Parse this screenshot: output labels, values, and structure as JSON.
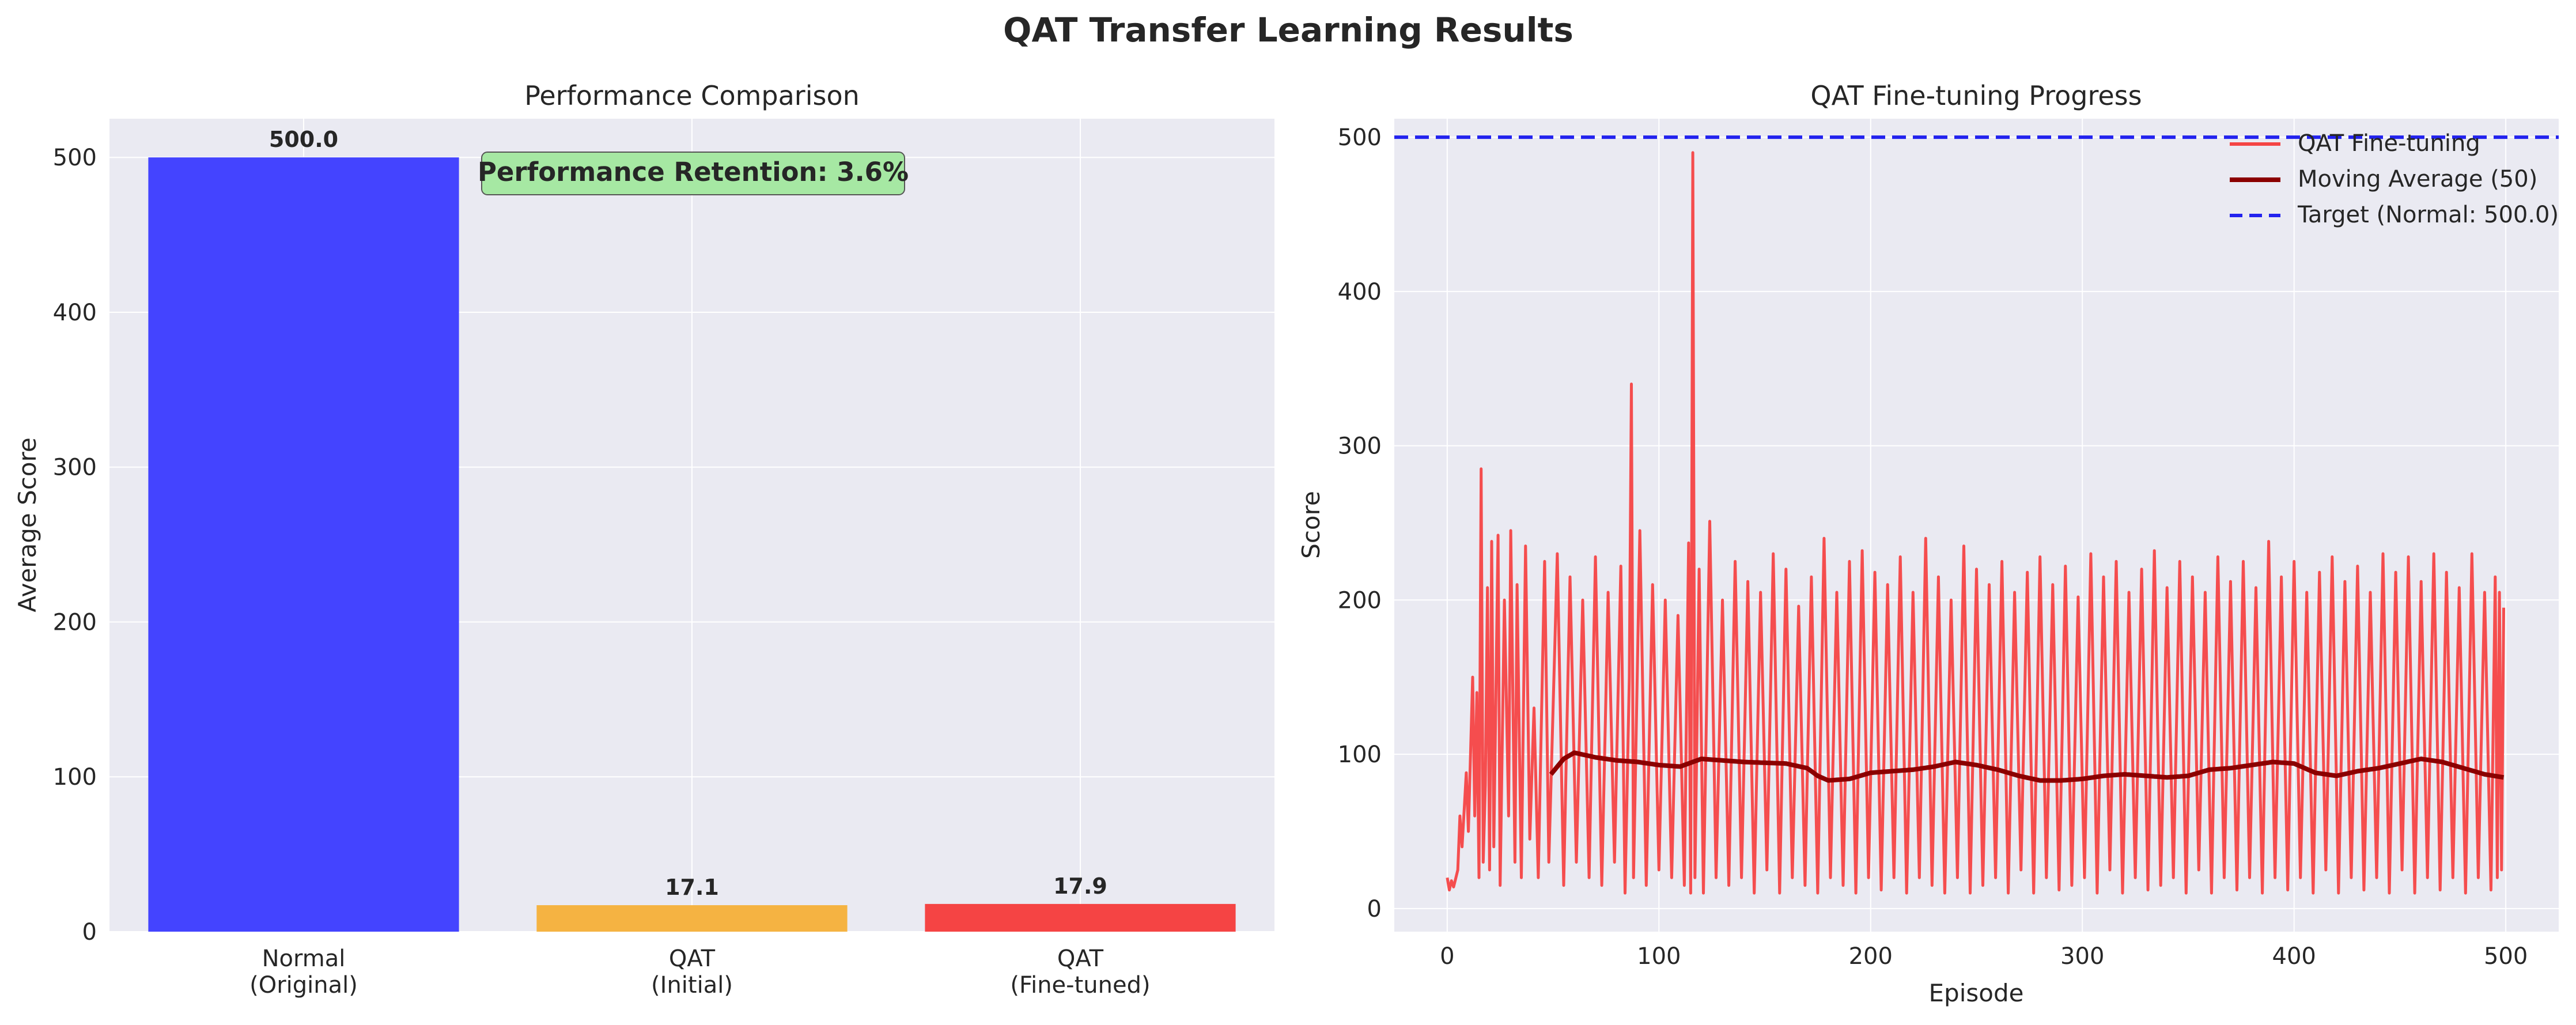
{
  "figure": {
    "suptitle": "QAT Transfer Learning Results"
  },
  "chart_data": [
    {
      "type": "bar",
      "title": "Performance Comparison",
      "xlabel": "",
      "ylabel": "Average Score",
      "categories": [
        "Normal\n(Original)",
        "QAT\n(Initial)",
        "QAT\n(Fine-tuned)"
      ],
      "values": [
        500.0,
        17.1,
        17.9
      ],
      "value_labels": [
        "500.0",
        "17.1",
        "17.9"
      ],
      "colors": [
        "#4444ff",
        "#f5b342",
        "#f54444"
      ],
      "ylim": [
        0,
        525
      ],
      "yticks": [
        0,
        100,
        200,
        300,
        400,
        500
      ],
      "grid": true,
      "annotation": {
        "text": "Performance Retention: 3.6%",
        "bg_color": "#a6e8a3"
      }
    },
    {
      "type": "line",
      "title": "QAT Fine-tuning Progress",
      "xlabel": "Episode",
      "ylabel": "Score",
      "xlim": [
        -25,
        525
      ],
      "ylim": [
        -15,
        512
      ],
      "xticks": [
        0,
        100,
        200,
        300,
        400,
        500
      ],
      "yticks": [
        0,
        100,
        200,
        300,
        400,
        500
      ],
      "grid": true,
      "legend_position": "top-right",
      "series": [
        {
          "name": "QAT Fine-tuning",
          "color": "#f54444",
          "x_range": [
            0,
            499
          ],
          "keyframes": [
            [
              0,
              20
            ],
            [
              1,
              12
            ],
            [
              2,
              18
            ],
            [
              3,
              14
            ],
            [
              5,
              25
            ],
            [
              6,
              60
            ],
            [
              7,
              40
            ],
            [
              9,
              88
            ],
            [
              10,
              50
            ],
            [
              12,
              150
            ],
            [
              13,
              60
            ],
            [
              14,
              140
            ],
            [
              15,
              20
            ],
            [
              16,
              285
            ],
            [
              17,
              30
            ],
            [
              18,
              80
            ],
            [
              19,
              208
            ],
            [
              20,
              25
            ],
            [
              21,
              238
            ],
            [
              22,
              40
            ],
            [
              24,
              242
            ],
            [
              25,
              15
            ],
            [
              27,
              200
            ],
            [
              29,
              60
            ],
            [
              30,
              245
            ],
            [
              32,
              30
            ],
            [
              33,
              210
            ],
            [
              35,
              20
            ],
            [
              37,
              235
            ],
            [
              39,
              45
            ],
            [
              41,
              130
            ],
            [
              43,
              20
            ],
            [
              46,
              225
            ],
            [
              48,
              30
            ],
            [
              52,
              230
            ],
            [
              55,
              15
            ],
            [
              58,
              215
            ],
            [
              61,
              30
            ],
            [
              64,
              200
            ],
            [
              67,
              20
            ],
            [
              70,
              228
            ],
            [
              73,
              15
            ],
            [
              76,
              205
            ],
            [
              79,
              30
            ],
            [
              82,
              222
            ],
            [
              84,
              10
            ],
            [
              86,
              150
            ],
            [
              87,
              340
            ],
            [
              88,
              20
            ],
            [
              91,
              245
            ],
            [
              94,
              15
            ],
            [
              97,
              210
            ],
            [
              100,
              25
            ],
            [
              103,
              200
            ],
            [
              106,
              20
            ],
            [
              109,
              190
            ],
            [
              112,
              15
            ],
            [
              114,
              237
            ],
            [
              115,
              10
            ],
            [
              116,
              490
            ],
            [
              117,
              20
            ],
            [
              119,
              220
            ],
            [
              121,
              10
            ],
            [
              124,
              251
            ],
            [
              127,
              20
            ],
            [
              130,
              200
            ],
            [
              133,
              15
            ],
            [
              136,
              225
            ],
            [
              139,
              20
            ],
            [
              142,
              212
            ],
            [
              145,
              10
            ],
            [
              148,
              205
            ],
            [
              151,
              25
            ],
            [
              154,
              230
            ],
            [
              157,
              10
            ],
            [
              160,
              220
            ],
            [
              163,
              20
            ],
            [
              166,
              196
            ],
            [
              169,
              15
            ],
            [
              172,
              215
            ],
            [
              175,
              10
            ],
            [
              178,
              240
            ],
            [
              181,
              20
            ],
            [
              184,
              205
            ],
            [
              187,
              15
            ],
            [
              190,
              225
            ],
            [
              193,
              10
            ],
            [
              196,
              232
            ],
            [
              199,
              20
            ],
            [
              202,
              218
            ],
            [
              205,
              12
            ],
            [
              208,
              210
            ],
            [
              211,
              20
            ],
            [
              214,
              228
            ],
            [
              217,
              10
            ],
            [
              220,
              205
            ],
            [
              223,
              20
            ],
            [
              226,
              240
            ],
            [
              229,
              15
            ],
            [
              232,
              215
            ],
            [
              235,
              10
            ],
            [
              238,
              200
            ],
            [
              241,
              20
            ],
            [
              244,
              235
            ],
            [
              247,
              10
            ],
            [
              250,
              220
            ],
            [
              253,
              15
            ],
            [
              256,
              210
            ],
            [
              259,
              20
            ],
            [
              262,
              225
            ],
            [
              265,
              10
            ],
            [
              268,
              205
            ],
            [
              271,
              25
            ],
            [
              274,
              218
            ],
            [
              277,
              10
            ],
            [
              280,
              228
            ],
            [
              283,
              20
            ],
            [
              286,
              210
            ],
            [
              289,
              12
            ],
            [
              292,
              222
            ],
            [
              295,
              15
            ],
            [
              298,
              202
            ],
            [
              301,
              20
            ],
            [
              304,
              230
            ],
            [
              307,
              10
            ],
            [
              310,
              215
            ],
            [
              313,
              25
            ],
            [
              316,
              225
            ],
            [
              319,
              10
            ],
            [
              322,
              205
            ],
            [
              325,
              20
            ],
            [
              328,
              220
            ],
            [
              331,
              12
            ],
            [
              334,
              232
            ],
            [
              337,
              15
            ],
            [
              340,
              208
            ],
            [
              343,
              20
            ],
            [
              346,
              225
            ],
            [
              349,
              10
            ],
            [
              352,
              215
            ],
            [
              355,
              25
            ],
            [
              358,
              205
            ],
            [
              361,
              10
            ],
            [
              364,
              228
            ],
            [
              367,
              20
            ],
            [
              370,
              212
            ],
            [
              373,
              12
            ],
            [
              376,
              225
            ],
            [
              379,
              20
            ],
            [
              382,
              208
            ],
            [
              385,
              10
            ],
            [
              388,
              238
            ],
            [
              391,
              20
            ],
            [
              394,
              215
            ],
            [
              397,
              12
            ],
            [
              400,
              225
            ],
            [
              403,
              20
            ],
            [
              406,
              205
            ],
            [
              409,
              10
            ],
            [
              412,
              218
            ],
            [
              415,
              25
            ],
            [
              418,
              228
            ],
            [
              421,
              10
            ],
            [
              424,
              212
            ],
            [
              427,
              20
            ],
            [
              430,
              222
            ],
            [
              433,
              12
            ],
            [
              436,
              205
            ],
            [
              439,
              20
            ],
            [
              442,
              230
            ],
            [
              445,
              10
            ],
            [
              448,
              218
            ],
            [
              451,
              25
            ],
            [
              454,
              228
            ],
            [
              457,
              10
            ],
            [
              460,
              212
            ],
            [
              463,
              20
            ],
            [
              466,
              230
            ],
            [
              469,
              12
            ],
            [
              472,
              218
            ],
            [
              475,
              20
            ],
            [
              478,
              208
            ],
            [
              481,
              10
            ],
            [
              484,
              230
            ],
            [
              487,
              20
            ],
            [
              490,
              205
            ],
            [
              493,
              12
            ],
            [
              495,
              215
            ],
            [
              496,
              20
            ],
            [
              497,
              205
            ],
            [
              498,
              25
            ],
            [
              499,
              195
            ]
          ]
        },
        {
          "name": "Moving Average (50)",
          "color": "#8b0000",
          "x_range": [
            49,
            499
          ],
          "keyframes": [
            [
              49,
              87
            ],
            [
              55,
              97
            ],
            [
              60,
              101
            ],
            [
              70,
              98
            ],
            [
              80,
              96
            ],
            [
              90,
              95
            ],
            [
              100,
              93
            ],
            [
              110,
              92
            ],
            [
              120,
              97
            ],
            [
              140,
              95
            ],
            [
              160,
              94
            ],
            [
              170,
              91
            ],
            [
              175,
              86
            ],
            [
              180,
              83
            ],
            [
              190,
              84
            ],
            [
              200,
              88
            ],
            [
              210,
              89
            ],
            [
              220,
              90
            ],
            [
              230,
              92
            ],
            [
              240,
              95
            ],
            [
              250,
              93
            ],
            [
              260,
              90
            ],
            [
              270,
              86
            ],
            [
              280,
              83
            ],
            [
              290,
              83
            ],
            [
              300,
              84
            ],
            [
              310,
              86
            ],
            [
              320,
              87
            ],
            [
              330,
              86
            ],
            [
              340,
              85
            ],
            [
              350,
              86
            ],
            [
              360,
              90
            ],
            [
              370,
              91
            ],
            [
              380,
              93
            ],
            [
              390,
              95
            ],
            [
              400,
              94
            ],
            [
              410,
              88
            ],
            [
              420,
              86
            ],
            [
              430,
              89
            ],
            [
              440,
              91
            ],
            [
              450,
              94
            ],
            [
              460,
              97
            ],
            [
              470,
              95
            ],
            [
              480,
              91
            ],
            [
              490,
              87
            ],
            [
              499,
              85
            ]
          ]
        },
        {
          "name": "Target (Normal: 500.0)",
          "color": "#2222ee",
          "style": "dashed",
          "constant_y": 500.0
        }
      ]
    }
  ]
}
